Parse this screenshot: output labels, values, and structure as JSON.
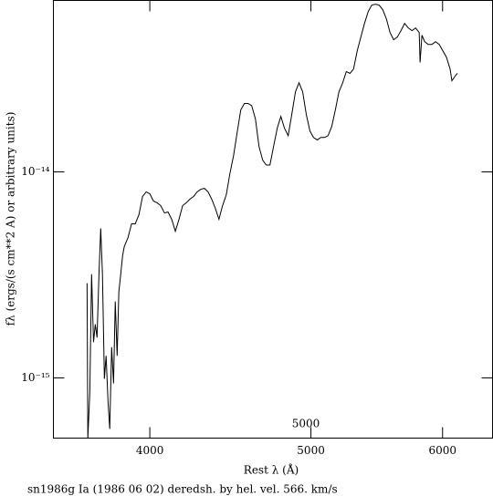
{
  "chart_data": {
    "type": "line",
    "x_label": "Rest λ (Å)",
    "y_label": "fλ (ergs/(s cm**2 A) or arbitrary units)",
    "caption": "sn1986g Ia (1986 06 02) deredsh. by hel. vel.   566. km/s",
    "annotation": "5000",
    "xscale": "log",
    "yscale": "log",
    "xlim": [
      3500,
      6430
    ],
    "ylim": [
      5.1e-16,
      6.8e-14
    ],
    "xticks": [
      4000,
      5000,
      6000
    ],
    "yticks": [
      {
        "value": 1e-15,
        "label": "10⁻¹⁵"
      },
      {
        "value": 1e-14,
        "label": "10⁻¹⁴"
      }
    ],
    "color": "#000000",
    "x": [
      3667,
      3671,
      3681,
      3690,
      3700,
      3709,
      3718,
      3728,
      3737,
      3746,
      3756,
      3765,
      3775,
      3784,
      3794,
      3804,
      3813,
      3823,
      3832,
      3842,
      3852,
      3861,
      3881,
      3900,
      3920,
      3940,
      3960,
      3980,
      4000,
      4020,
      4041,
      4061,
      4082,
      4102,
      4123,
      4144,
      4165,
      4186,
      4207,
      4228,
      4250,
      4271,
      4293,
      4314,
      4336,
      4358,
      4380,
      4402,
      4424,
      4447,
      4469,
      4492,
      4514,
      4537,
      4560,
      4583,
      4606,
      4630,
      4653,
      4677,
      4700,
      4724,
      4748,
      4772,
      4796,
      4820,
      4845,
      4869,
      4894,
      4918,
      4943,
      4968,
      4993,
      5018,
      5044,
      5069,
      5095,
      5120,
      5146,
      5172,
      5198,
      5225,
      5251,
      5278,
      5304,
      5331,
      5358,
      5385,
      5413,
      5440,
      5468,
      5495,
      5523,
      5551,
      5579,
      5607,
      5636,
      5664,
      5693,
      5722,
      5751,
      5780,
      5809,
      5816,
      5831,
      5853,
      5882,
      5912,
      5942,
      5972,
      6002,
      6032,
      6063,
      6078,
      6109,
      6125
    ],
    "values": [
      2.88e-15,
      5.1e-16,
      8.5e-16,
      3.19e-15,
      1.49e-15,
      1.82e-15,
      1.57e-15,
      3.19e-15,
      5.32e-15,
      3.19e-15,
      9.9e-16,
      1.28e-15,
      7.7e-16,
      5.65e-16,
      1.41e-15,
      9.4e-16,
      2.35e-15,
      1.28e-15,
      2.61e-15,
      3.19e-15,
      3.92e-15,
      4.34e-15,
      4.8e-15,
      5.6e-15,
      5.6e-15,
      6.19e-15,
      7.6e-15,
      8e-15,
      7.83e-15,
      7.22e-15,
      7.08e-15,
      6.86e-15,
      6.32e-15,
      6.39e-15,
      5.89e-15,
      5.15e-15,
      5.89e-15,
      6.86e-15,
      7.08e-15,
      7.37e-15,
      7.6e-15,
      8e-15,
      8.24e-15,
      8.32e-15,
      8e-15,
      7.37e-15,
      6.65e-15,
      5.89e-15,
      6.86e-15,
      7.75e-15,
      9.8e-15,
      1.2e-14,
      1.55e-14,
      2e-14,
      2.15e-14,
      2.15e-14,
      2.1e-14,
      1.81e-14,
      1.33e-14,
      1.14e-14,
      1.08e-14,
      1.08e-14,
      1.33e-14,
      1.63e-14,
      1.86e-14,
      1.63e-14,
      1.5e-14,
      1.9e-14,
      2.45e-14,
      2.71e-14,
      2.45e-14,
      1.9e-14,
      1.58e-14,
      1.47e-14,
      1.43e-14,
      1.47e-14,
      1.47e-14,
      1.5e-14,
      1.66e-14,
      2e-14,
      2.45e-14,
      2.71e-14,
      3.07e-14,
      3.01e-14,
      3.16e-14,
      3.87e-14,
      4.52e-14,
      5.26e-14,
      6.01e-14,
      6.46e-14,
      6.52e-14,
      6.46e-14,
      6.13e-14,
      5.53e-14,
      4.75e-14,
      4.38e-14,
      4.52e-14,
      4.85e-14,
      5.26e-14,
      5e-14,
      4.85e-14,
      5e-14,
      4.75e-14,
      3.4e-14,
      4.61e-14,
      4.29e-14,
      4.16e-14,
      4.16e-14,
      4.29e-14,
      4.16e-14,
      3.87e-14,
      3.61e-14,
      3.16e-14,
      2.77e-14,
      2.94e-14,
      3.01e-14
    ]
  }
}
